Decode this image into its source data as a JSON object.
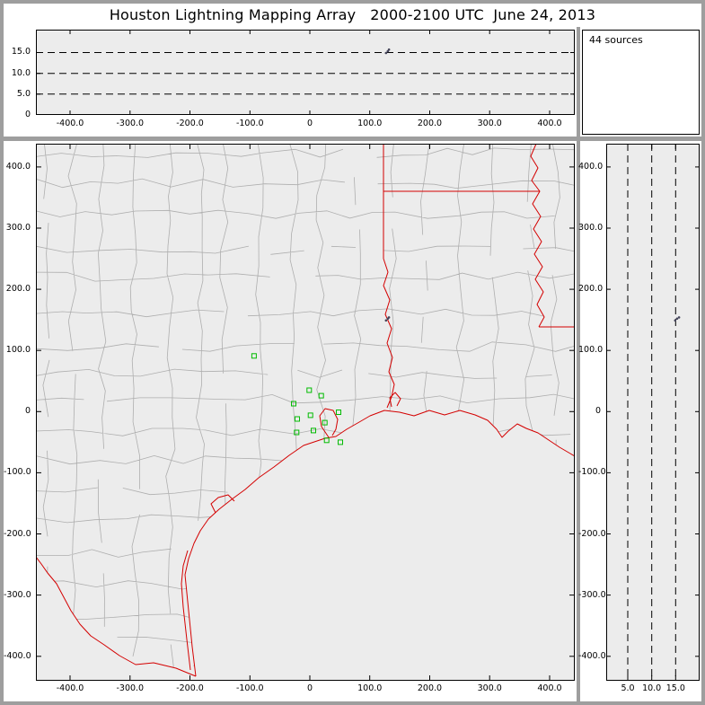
{
  "title": "Houston Lightning Mapping Array   2000-2100 UTC  June 24, 2013",
  "sources_box": {
    "label": "44 sources"
  },
  "colors": {
    "frame": "#9e9e9e",
    "panel_bg": "#ececec",
    "county_line": "#aeaeae",
    "state_border_red": "#d40000",
    "station_green": "#00bb00",
    "dashed_line": "#000000",
    "source_dot": "#44445a"
  },
  "chart_data": {
    "type": "scatter",
    "title": "Houston Lightning Mapping Array 2000-2100 UTC June 24, 2013",
    "subtitle": "LMA display: plan-view map with altitude projection panels",
    "sources_count": 44,
    "legend_position": "none",
    "grid": false,
    "panels": {
      "top": {
        "name": "altitude-vs-east-west",
        "alt_lim_km": [
          0,
          20.5
        ],
        "dashed_altitudes_km": [
          5,
          10,
          15
        ],
        "y_ticks": [
          {
            "v": 15,
            "label": "15.0"
          },
          {
            "v": 10,
            "label": "10.0"
          },
          {
            "v": 5,
            "label": "5.0"
          },
          {
            "v": 0,
            "label": "0"
          }
        ]
      },
      "plan": {
        "name": "plan-view-map",
        "xlim_km": [
          -457,
          442
        ],
        "ylim_km": [
          -440,
          438
        ],
        "x_ticks": [
          {
            "v": -400,
            "label": "-400.0"
          },
          {
            "v": -300,
            "label": "-300.0"
          },
          {
            "v": -200,
            "label": "-200.0"
          },
          {
            "v": -100,
            "label": "-100.0"
          },
          {
            "v": 0,
            "label": "0"
          },
          {
            "v": 100,
            "label": "100.0"
          },
          {
            "v": 200,
            "label": "200.0"
          },
          {
            "v": 300,
            "label": "300.0"
          },
          {
            "v": 400,
            "label": "400.0"
          }
        ],
        "y_ticks": [
          {
            "v": 400,
            "label": "400.0"
          },
          {
            "v": 300,
            "label": "300.0"
          },
          {
            "v": 200,
            "label": "200.0"
          },
          {
            "v": 100,
            "label": "100.0"
          },
          {
            "v": 0,
            "label": "0"
          },
          {
            "v": -100,
            "label": "-100.0"
          },
          {
            "v": -200,
            "label": "-200.0"
          },
          {
            "v": -300,
            "label": "-300.0"
          },
          {
            "v": -400,
            "label": "-400.0"
          }
        ]
      },
      "right": {
        "name": "altitude-vs-north-south",
        "alt_lim_km": [
          0.5,
          20
        ],
        "dashed_altitudes_km": [
          5,
          10,
          15
        ],
        "x_ticks": [
          {
            "v": 5,
            "label": "5.0"
          },
          {
            "v": 10,
            "label": "10.0"
          },
          {
            "v": 15,
            "label": "15.0"
          }
        ]
      }
    },
    "lma_stations_km": [
      {
        "east": -93,
        "north": 91
      },
      {
        "east": -1,
        "north": 35
      },
      {
        "east": 19,
        "north": 26
      },
      {
        "east": -27,
        "north": 13
      },
      {
        "east": -21,
        "north": -12
      },
      {
        "east": 1,
        "north": -6
      },
      {
        "east": -22,
        "north": -34
      },
      {
        "east": 6,
        "north": -31
      },
      {
        "east": 25,
        "north": -18
      },
      {
        "east": 48,
        "north": -1
      },
      {
        "east": 28,
        "north": -47
      },
      {
        "east": 51,
        "north": -50
      }
    ],
    "sources": [
      {
        "east": 130,
        "north": 152,
        "alt_km": 15.3
      },
      {
        "east": 127,
        "north": 149,
        "alt_km": 14.9
      },
      {
        "east": 132,
        "north": 154,
        "alt_km": 15.7
      }
    ]
  }
}
